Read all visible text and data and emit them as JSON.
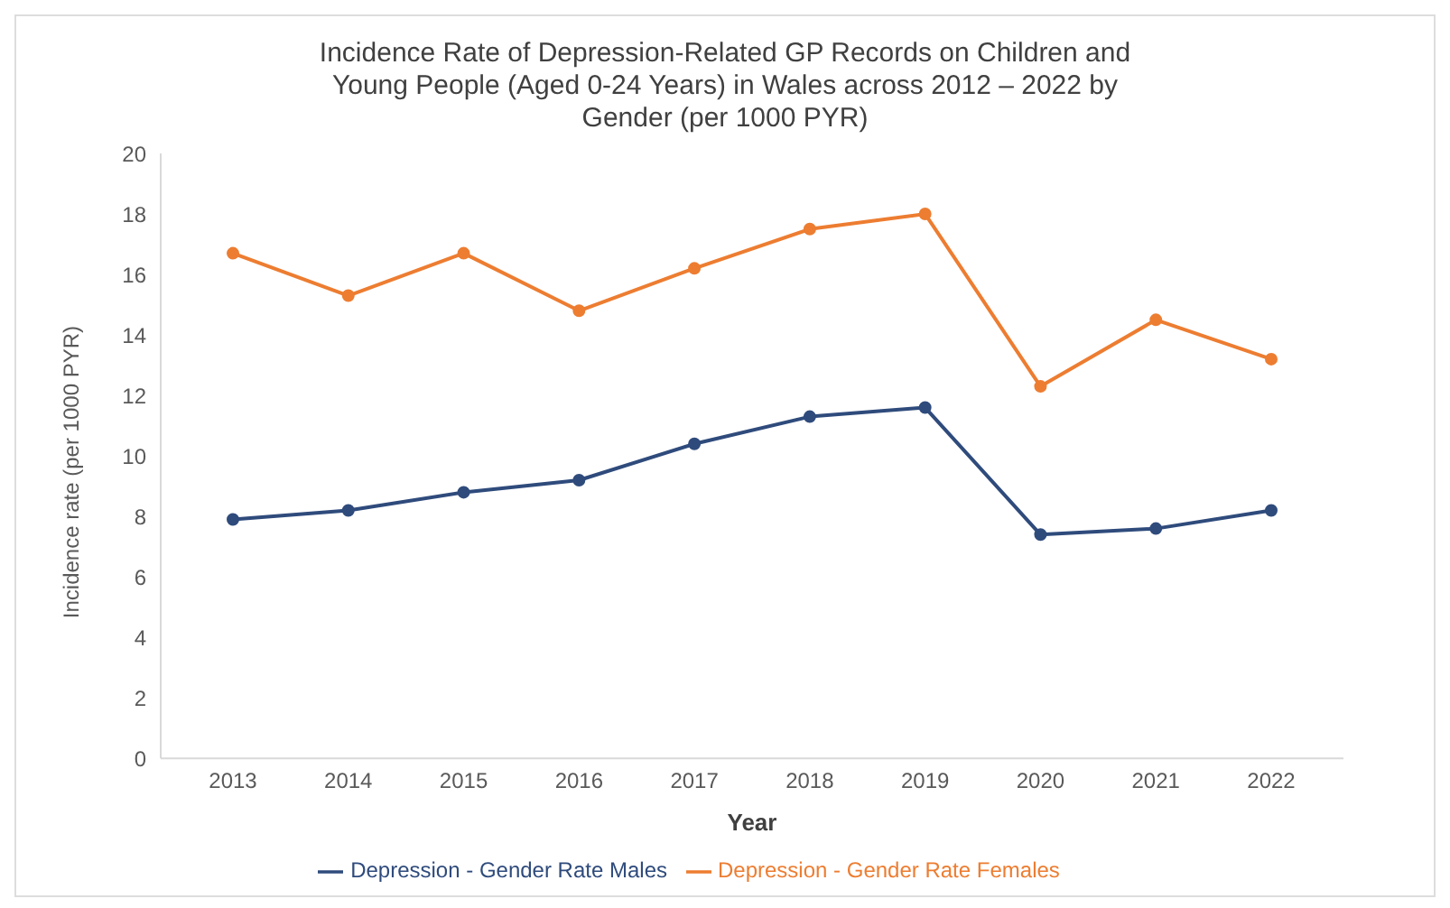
{
  "chart_data": {
    "type": "line",
    "title": "Incidence Rate of Depression-Related GP Records on Children and Young People (Aged 0-24 Years) in Wales across 2012 – 2022 by Gender (per 1000 PYR)",
    "xlabel": "Year",
    "ylabel": "Incidence rate (per 1000 PYR)",
    "categories": [
      "2013",
      "2014",
      "2015",
      "2016",
      "2017",
      "2018",
      "2019",
      "2020",
      "2021",
      "2022"
    ],
    "series": [
      {
        "name": "Depression - Gender Rate Males",
        "color": "#2f4b7c",
        "values": [
          7.9,
          8.2,
          8.8,
          9.2,
          10.4,
          11.3,
          11.6,
          7.4,
          7.6,
          8.2
        ]
      },
      {
        "name": "Depression - Gender Rate Females",
        "color": "#ed7d31",
        "values": [
          16.7,
          15.3,
          16.7,
          14.8,
          16.2,
          17.5,
          18.0,
          12.3,
          14.5,
          13.2
        ]
      }
    ],
    "ylim": [
      0,
      20
    ],
    "yticks": [
      0,
      2,
      4,
      6,
      8,
      10,
      12,
      14,
      16,
      18,
      20
    ],
    "grid": false,
    "legend": "bottom",
    "marker": "circle",
    "line_style": "solid"
  }
}
